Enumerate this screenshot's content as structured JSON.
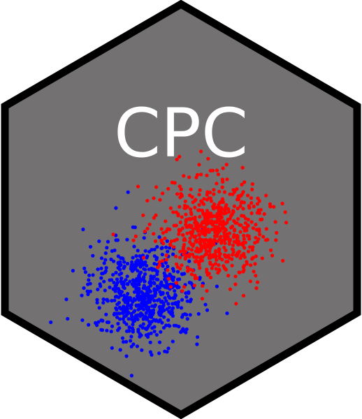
{
  "logo": {
    "title": "CPC",
    "colors": {
      "background_hex": "#737171",
      "border": "#000000",
      "title": "#ffffff",
      "cluster_red": "#ff0000",
      "cluster_blue": "#0000ff"
    }
  }
}
